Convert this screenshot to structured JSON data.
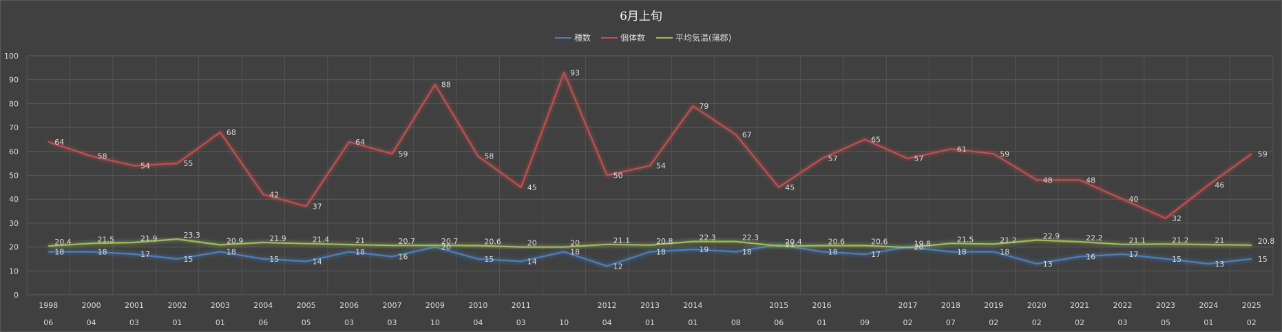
{
  "chart_data": {
    "type": "line",
    "title": "6月上旬",
    "ylim": [
      0,
      100
    ],
    "yticks": [
      0,
      10,
      20,
      30,
      40,
      50,
      60,
      70,
      80,
      90,
      100
    ],
    "grid": true,
    "legend_position": "top",
    "categories": [
      {
        "year": "1998",
        "sub": "06"
      },
      {
        "year": "2000",
        "sub": "04"
      },
      {
        "year": "2001",
        "sub": "03"
      },
      {
        "year": "2002",
        "sub": "01"
      },
      {
        "year": "2003",
        "sub": "01"
      },
      {
        "year": "2004",
        "sub": "06"
      },
      {
        "year": "2005",
        "sub": "05"
      },
      {
        "year": "2006",
        "sub": "03"
      },
      {
        "year": "2007",
        "sub": "03"
      },
      {
        "year": "2009",
        "sub": "10"
      },
      {
        "year": "2010",
        "sub": "04"
      },
      {
        "year": "2011",
        "sub": "03"
      },
      {
        "year": "",
        "sub": "10"
      },
      {
        "year": "2012",
        "sub": "04"
      },
      {
        "year": "2013",
        "sub": "01"
      },
      {
        "year": "2014",
        "sub": "01"
      },
      {
        "year": "",
        "sub": "08"
      },
      {
        "year": "2015",
        "sub": "06"
      },
      {
        "year": "2016",
        "sub": "01"
      },
      {
        "year": "",
        "sub": "09"
      },
      {
        "year": "2017",
        "sub": "02"
      },
      {
        "year": "2018",
        "sub": "07"
      },
      {
        "year": "2019",
        "sub": "02"
      },
      {
        "year": "2020",
        "sub": "02"
      },
      {
        "year": "2021",
        "sub": "02"
      },
      {
        "year": "2022",
        "sub": "03"
      },
      {
        "year": "2023",
        "sub": "05"
      },
      {
        "year": "2024",
        "sub": "01"
      },
      {
        "year": "2025",
        "sub": "02"
      }
    ],
    "series": [
      {
        "name": "種数",
        "color": "#4a7ebb",
        "values": [
          18,
          18,
          17,
          15,
          18,
          15,
          14,
          18,
          16,
          20,
          15,
          14,
          18,
          12,
          18,
          19,
          18,
          21,
          18,
          17,
          20,
          18,
          18,
          13,
          16,
          17,
          15,
          13,
          15
        ]
      },
      {
        "name": "個体数",
        "color": "#c0504d",
        "values": [
          64,
          58,
          54,
          55,
          68,
          42,
          37,
          64,
          59,
          88,
          58,
          45,
          93,
          50,
          54,
          79,
          67,
          45,
          57,
          65,
          57,
          61,
          59,
          48,
          48,
          40,
          32,
          46,
          59
        ]
      },
      {
        "name": "平均気温(蒲郡)",
        "color": "#9bbb59",
        "values": [
          20.4,
          21.5,
          21.9,
          23.3,
          20.9,
          21.9,
          21.4,
          21,
          20.7,
          20.7,
          20.6,
          20,
          20,
          21.1,
          20.8,
          22.3,
          22.3,
          20.4,
          20.6,
          20.6,
          19.8,
          21.5,
          21.2,
          22.9,
          22.2,
          21.1,
          21.2,
          21,
          20.8
        ]
      }
    ]
  }
}
